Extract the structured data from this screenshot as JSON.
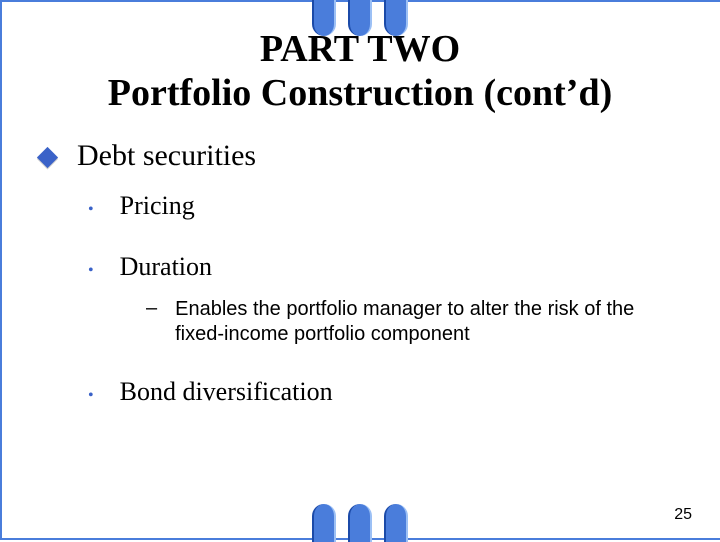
{
  "colors": {
    "accent": "#4a7ddb",
    "bullet": "#3a62c8",
    "text": "#000000",
    "background": "#ffffff"
  },
  "title": {
    "line1": "PART TWO",
    "line2": "Portfolio Construction (cont’d)",
    "fontsize": 38
  },
  "bullets": {
    "level1": {
      "text": "Debt securities",
      "fontsize": 30
    },
    "level2": [
      {
        "text": "Pricing"
      },
      {
        "text": "Duration"
      },
      {
        "text": "Bond diversification"
      }
    ],
    "level2_fontsize": 26,
    "level3": {
      "text": "Enables the portfolio manager to alter the risk of the fixed-income portfolio component",
      "fontsize": 20
    }
  },
  "pageNumber": "25"
}
